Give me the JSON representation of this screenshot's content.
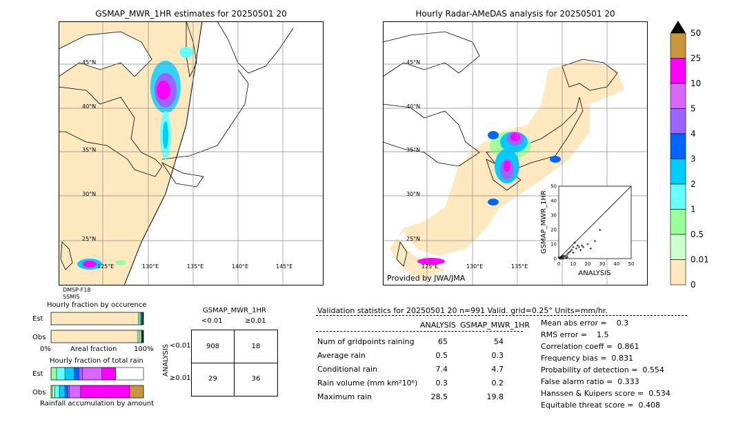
{
  "map_left": {
    "title": "GSMAP_MWR_1HR estimates for 20250501 20",
    "lat_labels": [
      "45°N",
      "40°N",
      "35°N",
      "30°N",
      "25°N"
    ],
    "lon_labels": [
      "125°E",
      "130°E",
      "135°E",
      "140°E",
      "145°E"
    ],
    "sensors": [
      "DMSP-F18",
      "SSMIS"
    ]
  },
  "map_right": {
    "title": "Hourly Radar-AMeDAS analysis for 20250501 20",
    "lat_labels": [
      "45°N",
      "40°N",
      "35°N",
      "30°N",
      "25°N"
    ],
    "lon_labels": [
      "125°E",
      "130°E",
      "135°E"
    ],
    "credit": "Provided by JWA/JMA"
  },
  "scatter": {
    "xlabel": "ANALYSIS",
    "ylabel": "GSMAP_MWR_1HR",
    "ticks": [
      "0",
      "10",
      "20",
      "30",
      "40",
      "50"
    ]
  },
  "colorbar": {
    "labels": [
      "50",
      "25",
      "10",
      "5",
      "4",
      "3",
      "2",
      "1",
      "0.5",
      "0.01",
      "0"
    ],
    "colors": [
      "#c8963c",
      "#ff00ff",
      "#d966ff",
      "#9966ff",
      "#0066ff",
      "#00ccff",
      "#66ffff",
      "#99ff99",
      "#ccffcc",
      "#fde8c0"
    ],
    "extend_color": "#000000"
  },
  "occurrence": {
    "title": "Hourly fraction by occurence",
    "row_labels": [
      "Est",
      "Obs"
    ],
    "axis_left": "0%",
    "axis_mid": "Areal fraction",
    "axis_right": "100%"
  },
  "total_rain": {
    "title": "Hourly fraction of total rain",
    "row_labels": [
      "Est",
      "Obs"
    ],
    "axis_label": "Rainfall accumulation by amount"
  },
  "contingency": {
    "title": "GSMAP_MWR_1HR",
    "col_headers": [
      "<0.01",
      "≥0.01"
    ],
    "row_headers": [
      "<0.01",
      "≥0.01"
    ],
    "side_label": "ANALYSIS",
    "cells": [
      "908",
      "18",
      "29",
      "36"
    ]
  },
  "validation": {
    "header": "Validation statistics for 20250501 20  n=991 Valid. grid=0.25° Units=mm/hr.",
    "col_analysis": "ANALYSIS",
    "col_gsmap": "GSMAP_MWR_1HR",
    "rows": [
      {
        "label": "Num of gridpoints raining",
        "analysis": "65",
        "gsmap": "54"
      },
      {
        "label": "Average rain",
        "analysis": "0.5",
        "gsmap": "0.3"
      },
      {
        "label": "Conditional rain",
        "analysis": "7.4",
        "gsmap": "4.7"
      },
      {
        "label": "Rain volume (mm km²10⁶)",
        "analysis": "0.3",
        "gsmap": "0.2"
      },
      {
        "label": "Maximum rain",
        "analysis": "28.5",
        "gsmap": "19.8"
      }
    ],
    "scores": [
      "Mean abs error =    0.3",
      "RMS error =    1.5",
      "Correlation coeff =  0.861",
      "Frequency bias =  0.831",
      "Probability of detection =  0.554",
      "False alarm ratio =  0.333",
      "Hanssen & Kuipers score =  0.534",
      "Equitable threat score =  0.408"
    ]
  },
  "chart_data": [
    {
      "type": "scatter",
      "title": "",
      "xlabel": "ANALYSIS",
      "ylabel": "GSMAP_MWR_1HR",
      "xlim": [
        0,
        50
      ],
      "ylim": [
        0,
        50
      ],
      "points": [
        [
          0.5,
          0.3
        ],
        [
          1,
          0.5
        ],
        [
          1.5,
          1
        ],
        [
          2,
          0.5
        ],
        [
          2,
          1.5
        ],
        [
          3,
          1
        ],
        [
          3,
          2
        ],
        [
          4,
          1.5
        ],
        [
          5,
          2
        ],
        [
          6,
          3
        ],
        [
          7,
          4
        ],
        [
          8,
          5
        ],
        [
          9,
          6
        ],
        [
          10,
          8
        ],
        [
          10,
          4
        ],
        [
          11,
          11
        ],
        [
          12,
          7
        ],
        [
          13,
          9
        ],
        [
          14,
          8
        ],
        [
          15,
          6
        ],
        [
          16,
          9
        ],
        [
          17,
          8
        ],
        [
          20,
          10
        ],
        [
          22,
          7
        ],
        [
          25,
          12
        ],
        [
          28.5,
          19.8
        ],
        [
          1,
          0
        ],
        [
          2,
          0
        ],
        [
          0,
          1
        ],
        [
          3,
          0
        ],
        [
          5,
          0.5
        ],
        [
          6,
          1
        ]
      ]
    },
    {
      "type": "bar",
      "title": "Hourly fraction by occurence",
      "categories": [
        "Est",
        "Obs"
      ],
      "series": [
        {
          "name": "0",
          "values": [
            0.945,
            0.934
          ]
        },
        {
          "name": "0.01",
          "values": [
            0.0,
            0.017
          ]
        },
        {
          "name": "0.5",
          "values": [
            0.018,
            0.021
          ]
        },
        {
          "name": "1",
          "values": [
            0.011,
            0.009
          ]
        },
        {
          "name": "2",
          "values": [
            0.009,
            0.007
          ]
        },
        {
          "name": "3",
          "values": [
            0.007,
            0.004
          ]
        },
        {
          "name": "4",
          "values": [
            0.003,
            0.003
          ]
        },
        {
          "name": "5",
          "values": [
            0.004,
            0.003
          ]
        },
        {
          "name": "10",
          "values": [
            0.003,
            0.002
          ]
        },
        {
          "name": "25",
          "values": [
            0.0,
            0.0
          ]
        }
      ]
    },
    {
      "type": "bar",
      "title": "Hourly fraction of total rain",
      "categories": [
        "Est",
        "Obs"
      ],
      "series": [
        {
          "name": "0.01",
          "values": [
            0.0,
            0.01
          ]
        },
        {
          "name": "0.5",
          "values": [
            0.06,
            0.03
          ]
        },
        {
          "name": "1",
          "values": [
            0.09,
            0.05
          ]
        },
        {
          "name": "2",
          "values": [
            0.1,
            0.06
          ]
        },
        {
          "name": "3",
          "values": [
            0.05,
            0.03
          ]
        },
        {
          "name": "4",
          "values": [
            0.04,
            0.02
          ]
        },
        {
          "name": "5",
          "values": [
            0.21,
            0.12
          ]
        },
        {
          "name": "10",
          "values": [
            0.15,
            0.53
          ]
        },
        {
          "name": "25",
          "values": [
            0.0,
            0.15
          ]
        }
      ]
    }
  ]
}
